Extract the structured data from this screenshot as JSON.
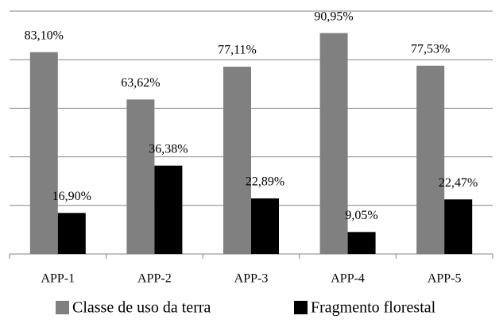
{
  "chart_data": {
    "type": "bar",
    "categories": [
      "APP-1",
      "APP-2",
      "APP-3",
      "APP-4",
      "APP-5"
    ],
    "series": [
      {
        "name": "Classe de uso da terra",
        "color": "#808080",
        "values": [
          83.1,
          63.62,
          77.11,
          90.95,
          77.53
        ],
        "value_labels": [
          "83,10%",
          "63,62%",
          "77,11%",
          "90,95%",
          "77,53%"
        ]
      },
      {
        "name": "Fragmento florestal",
        "color": "#000000",
        "values": [
          16.9,
          36.38,
          22.89,
          9.05,
          22.47
        ],
        "value_labels": [
          "16,90%",
          "36,38%",
          "22,89%",
          "9,05%",
          "22,47%"
        ]
      }
    ],
    "ylim": [
      0,
      100
    ],
    "yticks": [
      0,
      20,
      40,
      60,
      80,
      100
    ],
    "grid": true,
    "legend": "bottom"
  }
}
